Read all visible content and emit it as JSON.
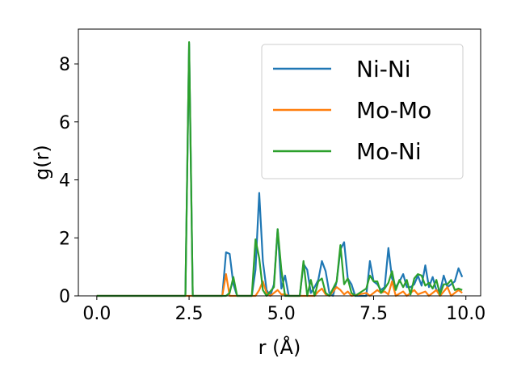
{
  "chart_data": {
    "type": "line",
    "title": "",
    "xlabel": "r (Å)",
    "ylabel": "g(r)",
    "xlim": [
      -0.5,
      10.4
    ],
    "ylim": [
      0,
      9.2
    ],
    "xticks": [
      0.0,
      2.5,
      5.0,
      7.5,
      10.0
    ],
    "xtick_labels": [
      "0.0",
      "2.5",
      "5.0",
      "7.5",
      "10.0"
    ],
    "yticks": [
      0,
      2,
      4,
      6,
      8
    ],
    "ytick_labels": [
      "0",
      "2",
      "4",
      "6",
      "8"
    ],
    "grid": false,
    "legend_position": "top-right",
    "series": [
      {
        "name": "Ni-Ni",
        "color": "#1f77b4",
        "points": [
          [
            0.0,
            0
          ],
          [
            2.4,
            0
          ],
          [
            2.5,
            8.7
          ],
          [
            2.6,
            0
          ],
          [
            3.4,
            0
          ],
          [
            3.5,
            1.5
          ],
          [
            3.6,
            1.45
          ],
          [
            3.7,
            0.4
          ],
          [
            3.8,
            0
          ],
          [
            4.2,
            0
          ],
          [
            4.3,
            0.9
          ],
          [
            4.4,
            3.55
          ],
          [
            4.5,
            1.2
          ],
          [
            4.6,
            0.2
          ],
          [
            4.7,
            0
          ],
          [
            4.8,
            0.4
          ],
          [
            4.9,
            2.3
          ],
          [
            5.0,
            0.25
          ],
          [
            5.1,
            0.7
          ],
          [
            5.2,
            0
          ],
          [
            5.5,
            0
          ],
          [
            5.6,
            1.1
          ],
          [
            5.7,
            0.9
          ],
          [
            5.8,
            0.1
          ],
          [
            5.9,
            0.3
          ],
          [
            6.0,
            0.55
          ],
          [
            6.1,
            1.2
          ],
          [
            6.2,
            0.85
          ],
          [
            6.3,
            0.1
          ],
          [
            6.4,
            0
          ],
          [
            6.5,
            0.5
          ],
          [
            6.6,
            1.6
          ],
          [
            6.7,
            1.85
          ],
          [
            6.8,
            0.6
          ],
          [
            6.9,
            0.4
          ],
          [
            7.0,
            0
          ],
          [
            7.3,
            0
          ],
          [
            7.4,
            1.2
          ],
          [
            7.5,
            0.5
          ],
          [
            7.6,
            0.4
          ],
          [
            7.7,
            0.2
          ],
          [
            7.8,
            0.3
          ],
          [
            7.9,
            1.65
          ],
          [
            8.0,
            0.6
          ],
          [
            8.1,
            0.3
          ],
          [
            8.2,
            0.5
          ],
          [
            8.3,
            0.75
          ],
          [
            8.4,
            0.3
          ],
          [
            8.5,
            0.3
          ],
          [
            8.6,
            0.4
          ],
          [
            8.7,
            0.7
          ],
          [
            8.8,
            0.35
          ],
          [
            8.9,
            1.05
          ],
          [
            9.0,
            0.3
          ],
          [
            9.1,
            0.65
          ],
          [
            9.2,
            0.2
          ],
          [
            9.3,
            0.15
          ],
          [
            9.4,
            0.7
          ],
          [
            9.5,
            0.3
          ],
          [
            9.6,
            0.4
          ],
          [
            9.7,
            0.5
          ],
          [
            9.8,
            0.95
          ],
          [
            9.9,
            0.65
          ]
        ]
      },
      {
        "name": "Mo-Mo",
        "color": "#ff7f0e",
        "points": [
          [
            0.0,
            0
          ],
          [
            3.4,
            0
          ],
          [
            3.5,
            0.75
          ],
          [
            3.6,
            0
          ],
          [
            4.3,
            0
          ],
          [
            4.4,
            0.2
          ],
          [
            4.5,
            0.5
          ],
          [
            4.6,
            0.1
          ],
          [
            4.7,
            0
          ],
          [
            4.9,
            0.2
          ],
          [
            5.0,
            0.05
          ],
          [
            5.1,
            0.05
          ],
          [
            5.2,
            0
          ],
          [
            5.9,
            0
          ],
          [
            6.0,
            0.15
          ],
          [
            6.1,
            0.25
          ],
          [
            6.2,
            0.05
          ],
          [
            6.3,
            0
          ],
          [
            6.5,
            0.3
          ],
          [
            6.6,
            0.2
          ],
          [
            6.7,
            0.05
          ],
          [
            6.8,
            0.15
          ],
          [
            6.9,
            0
          ],
          [
            7.3,
            0.1
          ],
          [
            7.4,
            0
          ],
          [
            7.6,
            0.2
          ],
          [
            7.7,
            0.1
          ],
          [
            7.8,
            0.15
          ],
          [
            7.9,
            0.05
          ],
          [
            8.0,
            0.5
          ],
          [
            8.1,
            0
          ],
          [
            8.3,
            0.15
          ],
          [
            8.4,
            0
          ],
          [
            8.6,
            0.2
          ],
          [
            8.7,
            0.05
          ],
          [
            8.9,
            0.15
          ],
          [
            9.0,
            0
          ],
          [
            9.2,
            0.2
          ],
          [
            9.3,
            0
          ],
          [
            9.5,
            0.3
          ],
          [
            9.6,
            0
          ],
          [
            9.8,
            0.2
          ],
          [
            9.9,
            0.1
          ]
        ]
      },
      {
        "name": "Mo-Ni",
        "color": "#2ca02c",
        "points": [
          [
            0.0,
            0
          ],
          [
            2.4,
            0
          ],
          [
            2.5,
            8.75
          ],
          [
            2.6,
            0
          ],
          [
            3.5,
            0
          ],
          [
            3.6,
            0.1
          ],
          [
            3.7,
            0.65
          ],
          [
            3.8,
            0
          ],
          [
            4.2,
            0
          ],
          [
            4.3,
            1.95
          ],
          [
            4.4,
            1.3
          ],
          [
            4.5,
            0.2
          ],
          [
            4.6,
            0
          ],
          [
            4.8,
            0.3
          ],
          [
            4.9,
            2.3
          ],
          [
            5.0,
            0.9
          ],
          [
            5.1,
            0
          ],
          [
            5.5,
            0
          ],
          [
            5.6,
            1.2
          ],
          [
            5.7,
            0
          ],
          [
            5.8,
            0.55
          ],
          [
            5.9,
            0
          ],
          [
            6.0,
            0.5
          ],
          [
            6.1,
            0.6
          ],
          [
            6.2,
            0.1
          ],
          [
            6.3,
            0
          ],
          [
            6.5,
            0.5
          ],
          [
            6.6,
            1.75
          ],
          [
            6.7,
            0.4
          ],
          [
            6.8,
            0.6
          ],
          [
            6.9,
            0.1
          ],
          [
            7.0,
            0
          ],
          [
            7.3,
            0.25
          ],
          [
            7.4,
            0.7
          ],
          [
            7.5,
            0.5
          ],
          [
            7.6,
            0.5
          ],
          [
            7.7,
            0.1
          ],
          [
            7.8,
            0.25
          ],
          [
            7.9,
            0.45
          ],
          [
            8.0,
            0.85
          ],
          [
            8.1,
            0.2
          ],
          [
            8.2,
            0.55
          ],
          [
            8.3,
            0.3
          ],
          [
            8.4,
            0.55
          ],
          [
            8.5,
            0.05
          ],
          [
            8.6,
            0.6
          ],
          [
            8.7,
            0.75
          ],
          [
            8.8,
            0.7
          ],
          [
            8.9,
            0.35
          ],
          [
            9.0,
            0.45
          ],
          [
            9.1,
            0.25
          ],
          [
            9.2,
            0.55
          ],
          [
            9.3,
            0.05
          ],
          [
            9.4,
            0.4
          ],
          [
            9.5,
            0.4
          ],
          [
            9.6,
            0.55
          ],
          [
            9.7,
            0.2
          ],
          [
            9.8,
            0.25
          ],
          [
            9.9,
            0.2
          ]
        ]
      }
    ]
  }
}
